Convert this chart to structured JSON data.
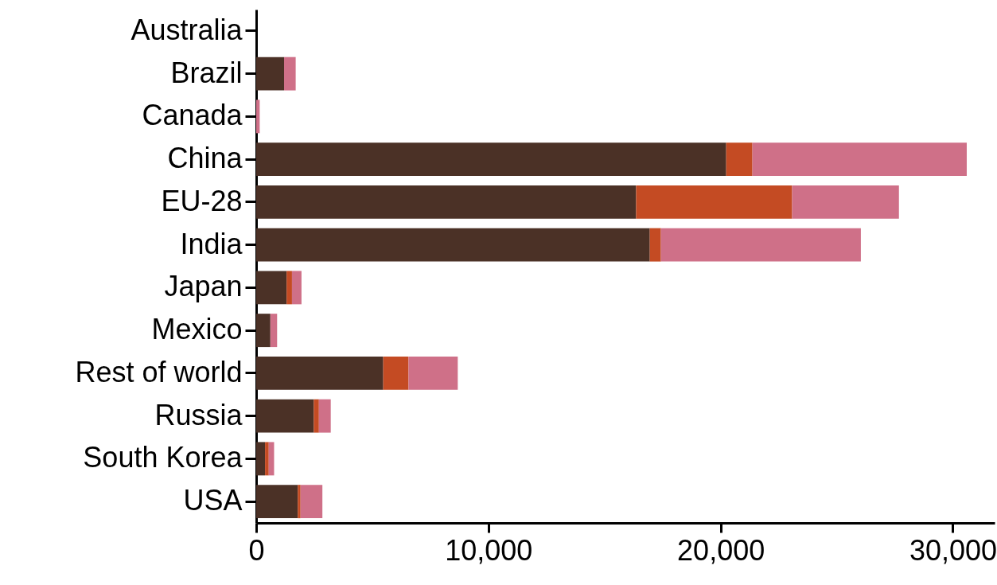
{
  "chart_data": {
    "type": "bar",
    "orientation": "horizontal",
    "stacked": true,
    "categories": [
      "Australia",
      "Brazil",
      "Canada",
      "China",
      "EU-28",
      "India",
      "Japan",
      "Mexico",
      "Rest of world",
      "Russia",
      "South Korea",
      "USA"
    ],
    "series": [
      {
        "color": "#4b3126",
        "values": [
          null,
          1200,
          null,
          20240,
          16360,
          16950,
          1310,
          610,
          5470,
          2480,
          380,
          1790
        ]
      },
      {
        "color": "#c44b23",
        "values": [
          null,
          null,
          null,
          1130,
          6720,
          480,
          230,
          null,
          1090,
          220,
          160,
          120
        ]
      },
      {
        "color": "#cf7088",
        "values": [
          null,
          500,
          150,
          9230,
          4600,
          8610,
          410,
          290,
          2120,
          510,
          230,
          940
        ]
      }
    ],
    "xlim": [
      0,
      31800
    ],
    "xticks": [
      0,
      {
        "value": 10000,
        "label": "10,000"
      },
      {
        "value": 20000,
        "label": "20,000"
      },
      {
        "value": 30000,
        "label": "30,000"
      }
    ],
    "grid": false
  }
}
